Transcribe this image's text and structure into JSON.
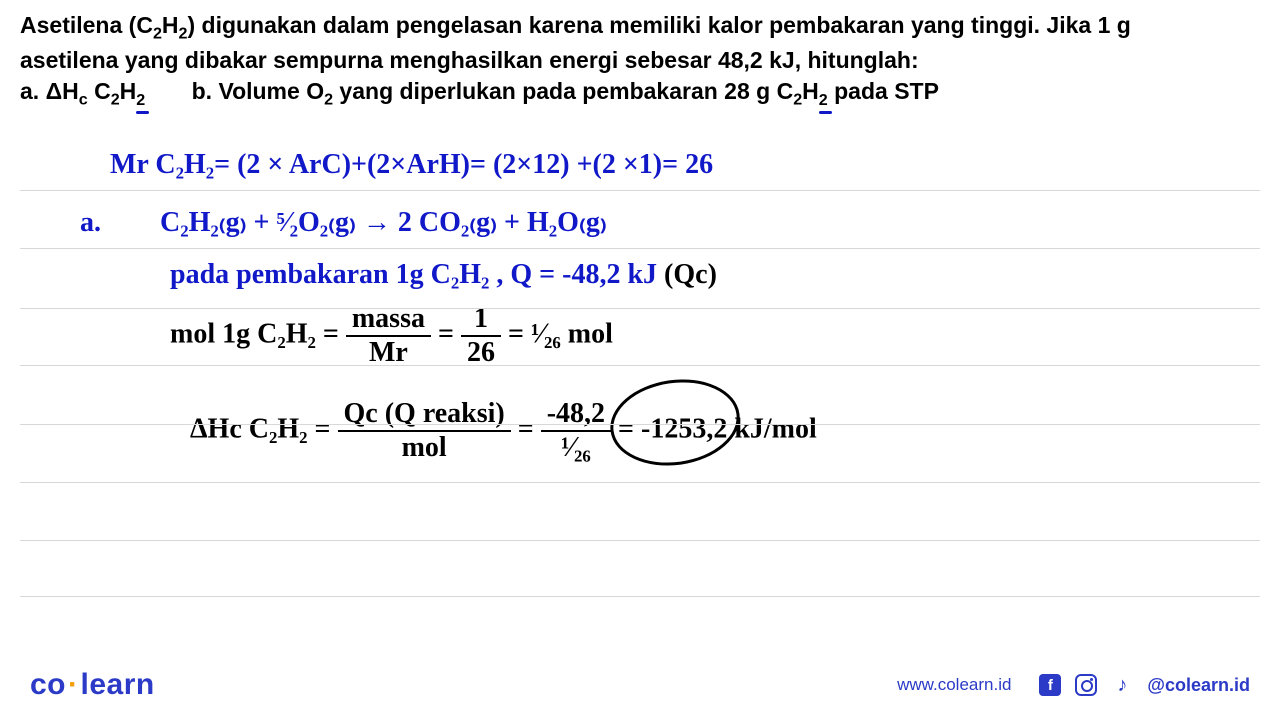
{
  "question": {
    "line1_pre": "Asetilena (C",
    "line1_sub1": "2",
    "line1_mid1": "H",
    "line1_sub2": "2",
    "line1_post": ") digunakan dalam pengelasan karena memiliki kalor pembakaran yang tinggi. Jika 1 g",
    "line2": "asetilena yang dibakar sempurna menghasilkan energi sebesar 48,2 kJ, hitunglah:",
    "a_label": "a.  ",
    "a_delta": "ΔH",
    "a_sub_c": "c",
    "a_c2h2_c": " C",
    "a_c2h2_2a": "2",
    "a_c2h2_h": "H",
    "a_c2h2_2b": "2",
    "b_label": "b.  Volume O",
    "b_sub_2": "2",
    "b_text": " yang diperlukan pada pembakaran 28 g C",
    "b_c2h2_2a": "2",
    "b_c2h2_h": "H",
    "b_c2h2_2b": "2",
    "b_tail": " pada STP"
  },
  "work": {
    "mr_line": "Mr C₂H₂= (2 × ArC)+(2×ArH)= (2×12) +(2 ×1)= 26",
    "a_label": "a.",
    "eq_line": "C₂H₂₍g₎ + ⁵⁄₂O₂₍g₎ → 2 CO₂₍g₎ + H₂O₍g₎",
    "pada_line_blue": "pada pembakaran 1g C₂H₂ , Q = -48,2 kJ",
    "pada_line_black": " (Qc)",
    "mol_prefix": "mol 1g C₂H₂ = ",
    "frac_massa_num": "massa",
    "frac_massa_den": "Mr",
    "eq_sign1": " = ",
    "frac_1_26_num": "1",
    "frac_1_26_den": "26",
    "mol_suffix": " = ¹⁄₂₆ mol",
    "dhc_prefix": "ΔHc C₂H₂  = ",
    "frac_qc_num": "Qc (Q reaksi)",
    "frac_qc_den": "mol",
    "dhc_mid": " = ",
    "frac_val_num": "-48,2",
    "frac_val_den": "¹⁄₂₆",
    "dhc_result": " = -1253,2 kJ/mol"
  },
  "ruled_lines_y": [
    50,
    108,
    168,
    225,
    284,
    342,
    400,
    456
  ],
  "footer": {
    "logo_left": "co",
    "logo_right": "learn",
    "url": "www.colearn.id",
    "handle": "@colearn.id"
  },
  "colors": {
    "ink_blue": "#1018c8",
    "ink_black": "#000000",
    "rule": "#d8d8d8",
    "brand": "#2b3ac7",
    "accent": "#f59e0b"
  }
}
